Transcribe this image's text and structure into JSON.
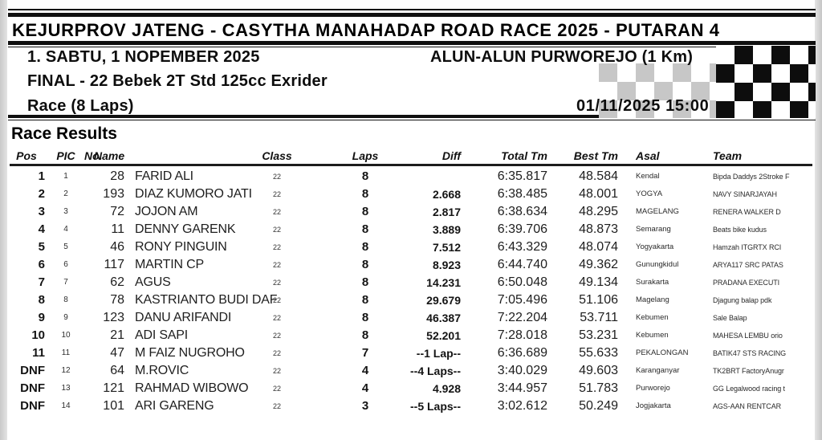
{
  "header": {
    "title": "KEJURPROV JATENG - CASYTHA MANAHADAP ROAD RACE 2025 - PUTARAN 4",
    "event_line": "1. SABTU, 1 NOPEMBER 2025",
    "venue": "ALUN-ALUN PURWOREJO (1 Km)",
    "class_line": "FINAL - 22  Bebek 2T Std 125cc Exrider",
    "race_line": "Race (8 Laps)",
    "datetime": "01/11/2025  15:00",
    "flag_icon": "checkered-flag",
    "colors": {
      "flag_black": "#0d0d0d",
      "flag_gray": "#c7c7c7",
      "rule": "#101010"
    }
  },
  "results": {
    "heading": "Race Results",
    "columns": [
      "Pos",
      "PIC",
      "No.",
      "Name",
      "Class",
      "Laps",
      "Diff",
      "Total Tm",
      "Best Tm",
      "Asal",
      "Team"
    ],
    "rows": [
      {
        "pos": "1",
        "pic": "1",
        "no": "28",
        "name": "FARID ALI",
        "cls": "22",
        "laps": "8",
        "diff": "",
        "total_tm": "6:35.817",
        "best_tm": "48.584",
        "asal": "Kendal",
        "team": "Bipda Daddys 2Stroke F"
      },
      {
        "pos": "2",
        "pic": "2",
        "no": "193",
        "name": "DIAZ KUMORO JATI",
        "cls": "22",
        "laps": "8",
        "diff": "2.668",
        "total_tm": "6:38.485",
        "best_tm": "48.001",
        "asal": "YOGYA",
        "team": "NAVY SINARJAYAH"
      },
      {
        "pos": "3",
        "pic": "3",
        "no": "72",
        "name": "JOJON AM",
        "cls": "22",
        "laps": "8",
        "diff": "2.817",
        "total_tm": "6:38.634",
        "best_tm": "48.295",
        "asal": "MAGELANG",
        "team": "RENERA WALKER D"
      },
      {
        "pos": "4",
        "pic": "4",
        "no": "11",
        "name": "DENNY GARENK",
        "cls": "22",
        "laps": "8",
        "diff": "3.889",
        "total_tm": "6:39.706",
        "best_tm": "48.873",
        "asal": "Semarang",
        "team": "Beats bike kudus"
      },
      {
        "pos": "5",
        "pic": "5",
        "no": "46",
        "name": "RONY PINGUIN",
        "cls": "22",
        "laps": "8",
        "diff": "7.512",
        "total_tm": "6:43.329",
        "best_tm": "48.074",
        "asal": "Yogyakarta",
        "team": "Hamzah ITGRTX RCI"
      },
      {
        "pos": "6",
        "pic": "6",
        "no": "117",
        "name": "MARTIN CP",
        "cls": "22",
        "laps": "8",
        "diff": "8.923",
        "total_tm": "6:44.740",
        "best_tm": "49.362",
        "asal": "Gunungkidul",
        "team": "ARYA117 SRC PATAS"
      },
      {
        "pos": "7",
        "pic": "7",
        "no": "62",
        "name": "AGUS",
        "cls": "22",
        "laps": "8",
        "diff": "14.231",
        "total_tm": "6:50.048",
        "best_tm": "49.134",
        "asal": "Surakarta",
        "team": "PRADANA EXECUTI"
      },
      {
        "pos": "8",
        "pic": "8",
        "no": "78",
        "name": "KASTRIANTO BUDI DAF",
        "cls": "22",
        "laps": "8",
        "diff": "29.679",
        "total_tm": "7:05.496",
        "best_tm": "51.106",
        "asal": "Magelang",
        "team": "Djagung balap pdk"
      },
      {
        "pos": "9",
        "pic": "9",
        "no": "123",
        "name": "DANU ARIFANDI",
        "cls": "22",
        "laps": "8",
        "diff": "46.387",
        "total_tm": "7:22.204",
        "best_tm": "53.711",
        "asal": "Kebumen",
        "team": "Sale Balap"
      },
      {
        "pos": "10",
        "pic": "10",
        "no": "21",
        "name": "ADI SAPI",
        "cls": "22",
        "laps": "8",
        "diff": "52.201",
        "total_tm": "7:28.018",
        "best_tm": "53.231",
        "asal": "Kebumen",
        "team": "MAHESA LEMBU orio"
      },
      {
        "pos": "11",
        "pic": "11",
        "no": "47",
        "name": "M FAIZ NUGROHO",
        "cls": "22",
        "laps": "7",
        "diff": "--1 Lap--",
        "total_tm": "6:36.689",
        "best_tm": "55.633",
        "asal": "PEKALONGAN",
        "team": "BATIK47 STS RACING"
      },
      {
        "pos": "DNF",
        "pic": "12",
        "no": "64",
        "name": "M.ROVIC",
        "cls": "22",
        "laps": "4",
        "diff": "--4 Laps--",
        "total_tm": "3:40.029",
        "best_tm": "49.603",
        "asal": "Karanganyar",
        "team": "TK2BRT FactoryAnugr"
      },
      {
        "pos": "DNF",
        "pic": "13",
        "no": "121",
        "name": "RAHMAD WIBOWO",
        "cls": "22",
        "laps": "4",
        "diff": "4.928",
        "total_tm": "3:44.957",
        "best_tm": "51.783",
        "asal": "Purworejo",
        "team": "GG Legalwood racing t"
      },
      {
        "pos": "DNF",
        "pic": "14",
        "no": "101",
        "name": "ARI GARENG",
        "cls": "22",
        "laps": "3",
        "diff": "--5 Laps--",
        "total_tm": "3:02.612",
        "best_tm": "50.249",
        "asal": "Jogjakarta",
        "team": "AGS-AAN RENTCAR"
      }
    ]
  }
}
